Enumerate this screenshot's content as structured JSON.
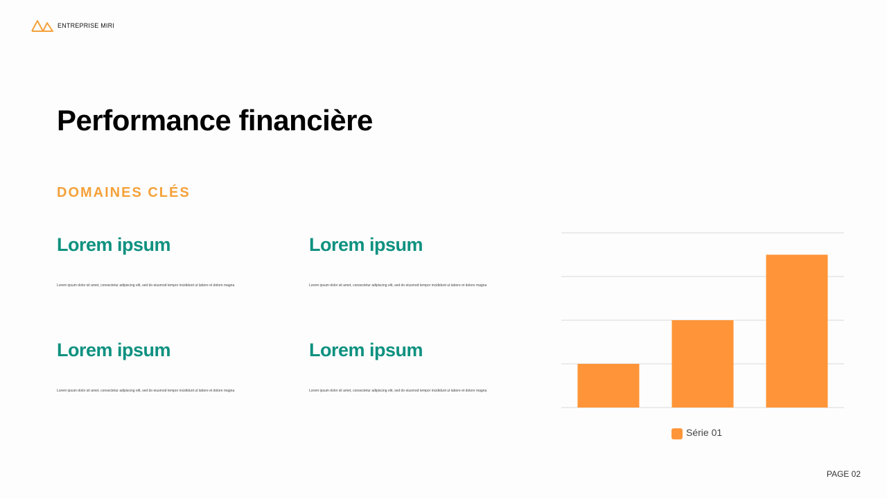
{
  "header": {
    "brand": "ENTREPRISE MIRI",
    "logo_icon": "mountain-icon"
  },
  "title": "Performance financière",
  "subtitle": "DOMAINES CLÉS",
  "items": [
    {
      "heading": "Lorem ipsum",
      "text": "Lorem ipsum dolor sit amet, consectetur adipiscing elit, sed do eiusmod tempor incididunt ut labore et dolore magna"
    },
    {
      "heading": "Lorem ipsum",
      "text": "Lorem ipsum dolor sit amet, consectetur adipiscing elit, sed do eiusmod tempor incididunt ut labore et dolore magna"
    },
    {
      "heading": "Lorem ipsum",
      "text": "Lorem ipsum dolor sit amet, consectetur adipiscing elit, sed do eiusmod tempor incididunt ut labore et dolore magna"
    },
    {
      "heading": "Lorem ipsum",
      "text": "Lorem ipsum dolor sit amet, consectetur adipiscing elit, sed do eiusmod tempor incididunt ut labore et dolore magna"
    }
  ],
  "footer": {
    "page": "PAGE 02"
  },
  "colors": {
    "accent": "#f5a13a",
    "heading": "#0e9180",
    "bar": "#ff9538",
    "grid": "#d9d9d9"
  },
  "chart_data": {
    "type": "bar",
    "categories": [
      "",
      "",
      ""
    ],
    "series": [
      {
        "name": "Série 01",
        "values": [
          1,
          2,
          3.5
        ]
      }
    ],
    "ylim": [
      0,
      4
    ],
    "grid": true,
    "legend": "bottom",
    "title": "",
    "xlabel": "",
    "ylabel": ""
  }
}
